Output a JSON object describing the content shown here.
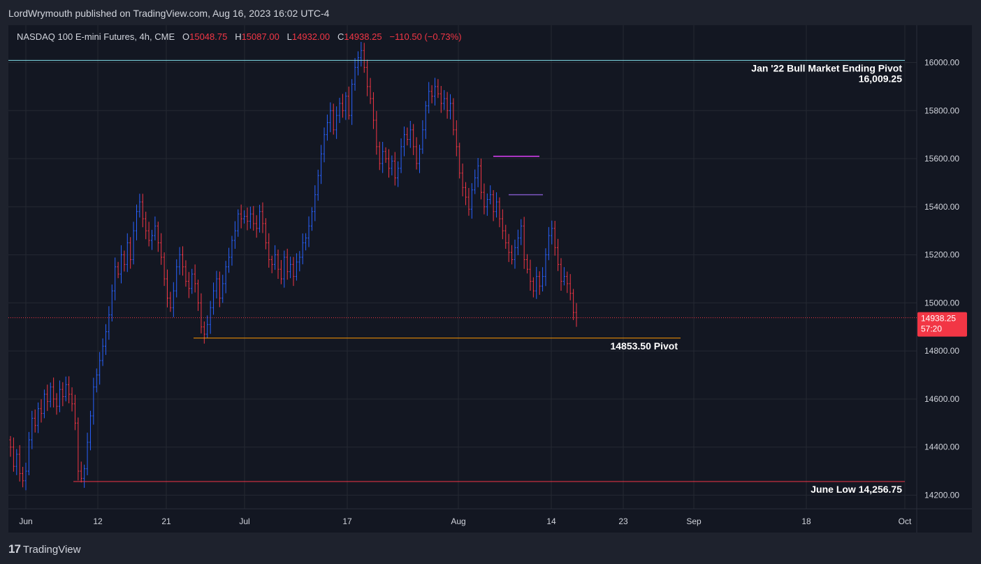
{
  "publisher": "LordWrymouth published on TradingView.com, Aug 16, 2023 16:02 UTC-4",
  "legend": {
    "symbol": "NASDAQ 100 E-mini Futures, 4h, CME",
    "o_label": "O",
    "o_value": "15048.75",
    "h_label": "H",
    "h_value": "15087.00",
    "l_label": "L",
    "l_value": "14932.00",
    "c_label": "C",
    "c_value": "14938.25",
    "change": "−110.50 (−0.73%)"
  },
  "footer": {
    "brand": "TradingView",
    "logo": "tradingview-logo-icon"
  },
  "colors": {
    "up": "#2962ff",
    "down": "#f23645",
    "background": "#131722",
    "grid": "#242832"
  },
  "chart_data": {
    "type": "candlestick",
    "title": "NASDAQ 100 E-mini Futures, 4h, CME",
    "ylim": [
      14150,
      16200
    ],
    "y_ticks": [
      "16000.00",
      "15800.00",
      "15600.00",
      "15400.00",
      "15200.00",
      "15000.00",
      "14800.00",
      "14600.00",
      "14400.00",
      "14200.00"
    ],
    "x_ticks": [
      "Jun",
      "12",
      "21",
      "Jul",
      "17",
      "Aug",
      "14",
      "23",
      "Sep",
      "18",
      "Oct"
    ],
    "price_label": {
      "price": "14938.25",
      "countdown": "57:20",
      "value": 14938.25
    },
    "horizontal_levels": [
      {
        "value": 16009.25,
        "color": "#80deea",
        "label1": "Jan '22 Bull Market Ending Pivot",
        "label2": "16,009.25"
      },
      {
        "value": 14853.5,
        "color": "#ff9800",
        "label1": "14853.50 Pivot"
      },
      {
        "value": 14256.75,
        "color": "#f23645",
        "label1": "June Low 14,256.75"
      }
    ],
    "resistance_segments": [
      {
        "value": 15610,
        "color": "#e040fb"
      },
      {
        "value": 15450,
        "color": "#7e57c2"
      }
    ],
    "closes": [
      14400,
      14320,
      14370,
      14290,
      14260,
      14300,
      14430,
      14520,
      14490,
      14560,
      14540,
      14620,
      14590,
      14650,
      14600,
      14570,
      14640,
      14610,
      14660,
      14620,
      14580,
      14500,
      14300,
      14270,
      14310,
      14420,
      14530,
      14650,
      14700,
      14760,
      14820,
      14880,
      14950,
      15050,
      15150,
      15120,
      15200,
      15160,
      15250,
      15180,
      15300,
      15380,
      15420,
      15350,
      15300,
      15260,
      15280,
      15320,
      15250,
      15190,
      15100,
      15020,
      14980,
      15050,
      15150,
      15200,
      15150,
      15090,
      15060,
      15120,
      15080,
      15000,
      14900,
      14870,
      14910,
      14980,
      15050,
      15100,
      15020,
      15080,
      15150,
      15190,
      15260,
      15300,
      15370,
      15350,
      15360,
      15340,
      15370,
      15330,
      15310,
      15380,
      15330,
      15250,
      15180,
      15160,
      15200,
      15140,
      15100,
      15190,
      15130,
      15160,
      15110,
      15170,
      15190,
      15250,
      15270,
      15320,
      15380,
      15450,
      15530,
      15620,
      15700,
      15750,
      15800,
      15720,
      15780,
      15830,
      15800,
      15860,
      15780,
      15910,
      15980,
      16020,
      16050,
      15980,
      15900,
      15850,
      15760,
      15650,
      15580,
      15630,
      15600,
      15560,
      15590,
      15520,
      15560,
      15650,
      15700,
      15680,
      15720,
      15650,
      15580,
      15640,
      15720,
      15820,
      15880,
      15860,
      15900,
      15870,
      15830,
      15850,
      15800,
      15830,
      15720,
      15650,
      15540,
      15480,
      15440,
      15390,
      15470,
      15520,
      15570,
      15460,
      15400,
      15430,
      15450,
      15380,
      15420,
      15350,
      15300,
      15250,
      15210,
      15180,
      15230,
      15270,
      15320,
      15180,
      15140,
      15090,
      15050,
      15110,
      15070,
      15110,
      15200,
      15280,
      15310,
      15230,
      15160,
      15090,
      15110,
      15080,
      15040,
      14960,
      14938.25
    ],
    "wick": 40
  }
}
